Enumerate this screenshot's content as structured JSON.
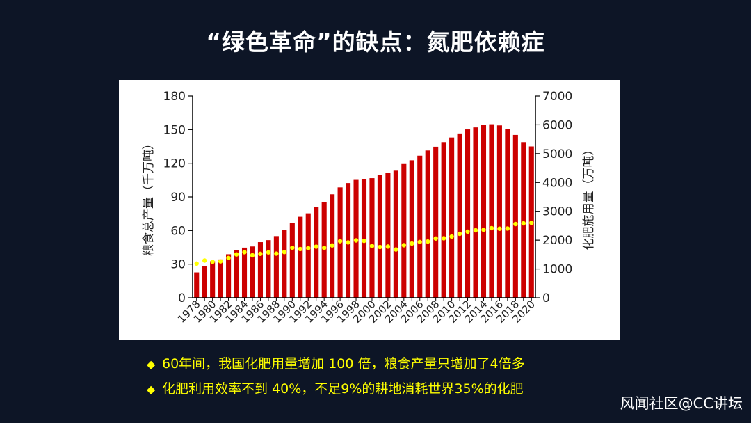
{
  "slide": {
    "title": "“绿色革命”的缺点：氮肥依赖症"
  },
  "colors": {
    "background": "#0d1526",
    "bar": "#cc0000",
    "line": "#ffff00",
    "bullet_text": "#ffff00"
  },
  "chart_data": {
    "type": "bar",
    "left_axis": {
      "label": "粮食总产量（千万吨）",
      "range": [
        0,
        180
      ],
      "ticks": [
        "0",
        "30",
        "60",
        "90",
        "120",
        "150",
        "180"
      ]
    },
    "right_axis": {
      "label": "化肥施用量（万吨）",
      "range": [
        0,
        7000
      ],
      "ticks": [
        "0",
        "1000",
        "2000",
        "3000",
        "4000",
        "5000",
        "6000",
        "7000"
      ]
    },
    "x_tick_labels": [
      "1978",
      "1980",
      "1982",
      "1984",
      "1986",
      "1988",
      "1990",
      "1992",
      "1994",
      "1996",
      "1998",
      "2000",
      "2002",
      "2004",
      "2006",
      "2008",
      "2010",
      "2012",
      "2014",
      "2016",
      "2018",
      "2020"
    ],
    "x": [
      1978,
      1979,
      1980,
      1981,
      1982,
      1983,
      1984,
      1985,
      1986,
      1987,
      1988,
      1989,
      1990,
      1991,
      1992,
      1993,
      1994,
      1995,
      1996,
      1997,
      1998,
      1999,
      2000,
      2001,
      2002,
      2003,
      2004,
      2005,
      2006,
      2007,
      2008,
      2009,
      2010,
      2011,
      2012,
      2013,
      2014,
      2015,
      2016,
      2017,
      2018,
      2019,
      2020
    ],
    "series": [
      {
        "type": "bar",
        "axis": "right",
        "values": [
          880,
          1090,
          1270,
          1330,
          1510,
          1660,
          1740,
          1780,
          1930,
          2000,
          2140,
          2360,
          2590,
          2810,
          2930,
          3150,
          3320,
          3590,
          3830,
          3980,
          4090,
          4120,
          4150,
          4250,
          4340,
          4410,
          4640,
          4770,
          4930,
          5110,
          5240,
          5400,
          5560,
          5700,
          5840,
          5910,
          6000,
          6020,
          5980,
          5860,
          5650,
          5400,
          5250
        ]
      },
      {
        "type": "line",
        "axis": "left",
        "values": [
          30.5,
          33.2,
          32.1,
          32.5,
          35.5,
          38.7,
          40.7,
          37.9,
          39.2,
          40.5,
          39.4,
          40.8,
          44.6,
          43.5,
          44.3,
          45.6,
          44.5,
          46.7,
          50.5,
          49.4,
          51.2,
          50.8,
          46.2,
          45.3,
          45.7,
          43.1,
          46.9,
          48.4,
          49.8,
          50.2,
          52.9,
          53.1,
          54.6,
          57.1,
          59.0,
          60.2,
          60.7,
          62.1,
          61.6,
          61.8,
          65.8,
          66.4,
          66.9
        ]
      }
    ]
  },
  "bullets": [
    {
      "marker": "◆",
      "text": "60年间，我国化肥用量增加 100 倍，粮食产量只增加了4倍多"
    },
    {
      "marker": "◆",
      "text": "化肥利用效率不到 40%，不足9%的耕地消耗世界35%的化肥"
    }
  ],
  "watermark": "风闻社区@CC讲坛"
}
